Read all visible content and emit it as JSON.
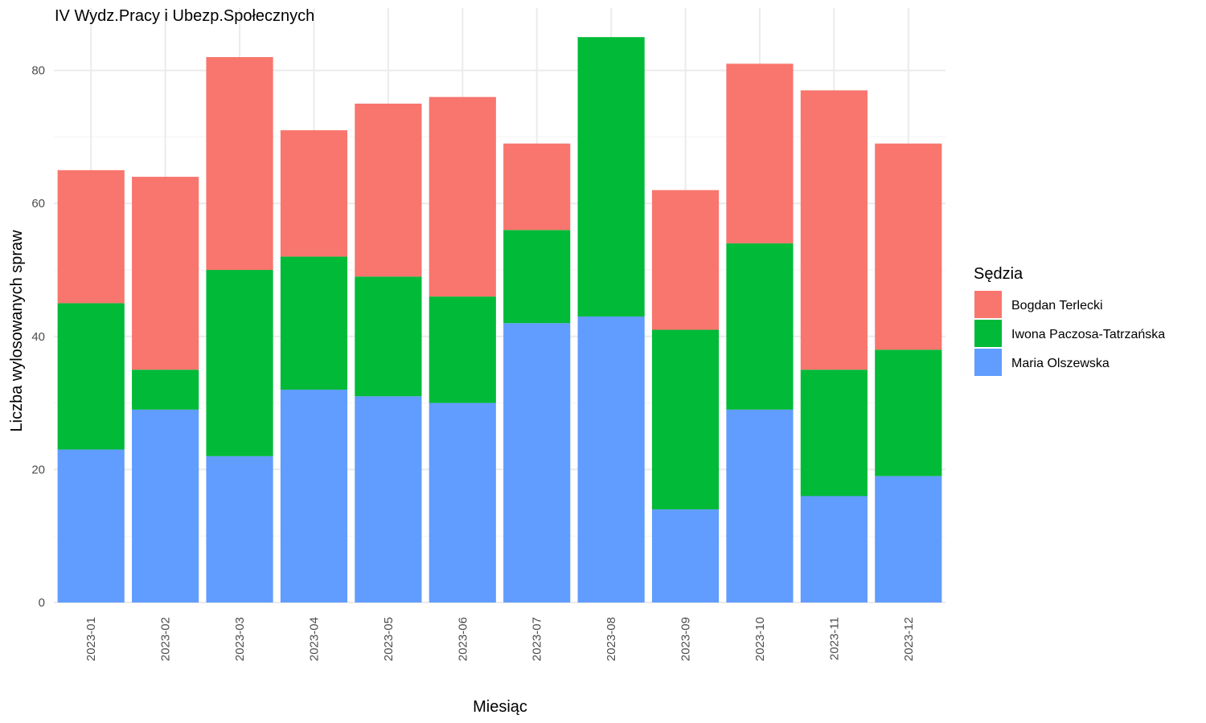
{
  "chart_data": {
    "type": "bar",
    "stacked": true,
    "title": "IV Wydz.Pracy i Ubezp.Społecznych",
    "xlabel": "Miesiąc",
    "ylabel": "Liczba wylosowanych spraw",
    "ylim": [
      0,
      88
    ],
    "yticks": [
      0,
      20,
      40,
      60,
      80
    ],
    "grid": true,
    "legend_position": "right",
    "legend_title": "Sędzia",
    "categories": [
      "2023-01",
      "2023-02",
      "2023-03",
      "2023-04",
      "2023-05",
      "2023-06",
      "2023-07",
      "2023-08",
      "2023-09",
      "2023-10",
      "2023-11",
      "2023-12"
    ],
    "series": [
      {
        "name": "Maria Olszewska",
        "color": "#619CFF",
        "values": [
          23,
          29,
          22,
          32,
          31,
          30,
          42,
          43,
          14,
          29,
          16,
          19
        ]
      },
      {
        "name": "Iwona Paczosa-Tatrzańska",
        "color": "#00BA38",
        "values": [
          22,
          6,
          28,
          20,
          18,
          16,
          14,
          42,
          27,
          25,
          19,
          19
        ]
      },
      {
        "name": "Bogdan Terlecki",
        "color": "#F8766D",
        "values": [
          20,
          29,
          32,
          19,
          26,
          30,
          13,
          0,
          21,
          27,
          42,
          31
        ]
      }
    ],
    "legend_order": [
      "Bogdan Terlecki",
      "Iwona Paczosa-Tatrzańska",
      "Maria Olszewska"
    ]
  }
}
